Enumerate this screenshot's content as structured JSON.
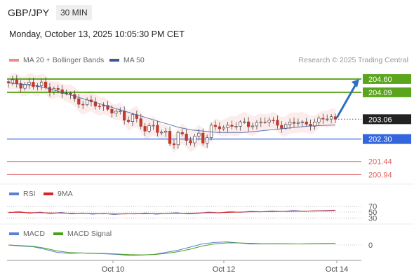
{
  "header": {
    "pair": "GBP/JPY",
    "timeframe": "30 MIN",
    "datetime": "Monday, October 13, 2025 10:05:30 PM CET",
    "copyright": "Research © 2025 Trading Central"
  },
  "colors": {
    "bollinger": "#f28a8a",
    "ma50": "#3b5998",
    "resistance": "#5aa51b",
    "support": "#3366dd",
    "support_red": "#e06060",
    "last_price": "#222222",
    "arrow": "#2e6fbf",
    "rsi": "#5b7fd6",
    "rsi_ma": "#d62728",
    "macd": "#5b7fd6",
    "macd_signal": "#4aa01a"
  },
  "chart_data": [
    {
      "type": "candlestick",
      "name": "price",
      "legend": [
        {
          "name": "MA 20 + Bollinger Bands",
          "color": "#f28a8a"
        },
        {
          "name": "MA 50",
          "color": "#3b5998"
        }
      ],
      "x_ticks": [
        "Oct 10",
        "Oct 12",
        "Oct 14"
      ],
      "y_range": [
        200.6,
        205.0
      ],
      "levels": [
        {
          "value": 204.6,
          "label": "204.60",
          "kind": "resistance"
        },
        {
          "value": 204.09,
          "label": "204.09",
          "kind": "resistance"
        },
        {
          "value": 203.06,
          "label": "203.06",
          "kind": "last"
        },
        {
          "value": 202.3,
          "label": "202.30",
          "kind": "support"
        },
        {
          "value": 201.44,
          "label": "201.44",
          "kind": "support_red"
        },
        {
          "value": 200.94,
          "label": "200.94",
          "kind": "support_red"
        }
      ],
      "close_path": [
        204.4,
        204.5,
        204.35,
        204.45,
        204.3,
        204.4,
        204.2,
        204.3,
        204.0,
        204.1,
        203.8,
        203.7,
        203.75,
        203.6,
        203.55,
        203.5,
        203.4,
        203.3,
        202.9,
        203.2,
        203.0,
        202.6,
        202.8,
        202.55,
        202.6,
        202.0,
        202.5,
        202.3,
        202.2,
        202.6,
        202.1,
        202.7,
        202.8,
        202.75,
        202.85,
        202.8,
        202.9,
        202.85,
        202.9,
        203.0,
        202.95,
        202.9,
        202.8,
        202.9,
        202.95,
        202.85,
        202.9,
        203.0,
        203.05,
        203.1,
        203.06
      ],
      "ma50_path": [
        204.45,
        204.4,
        204.35,
        204.25,
        204.1,
        203.95,
        203.8,
        203.65,
        203.5,
        203.35,
        203.2,
        203.05,
        202.9,
        202.75,
        202.65,
        202.6,
        202.55,
        202.55,
        202.55,
        202.6,
        202.65,
        202.7,
        202.75,
        202.8,
        202.82,
        202.84
      ],
      "arrow": {
        "from": 203.06,
        "to": 204.6
      }
    },
    {
      "type": "line",
      "name": "rsi",
      "legend": [
        {
          "name": "RSI",
          "color": "#5b7fd6"
        },
        {
          "name": "9MA",
          "color": "#d62728"
        }
      ],
      "y_ticks": [
        "70",
        "50",
        "30"
      ],
      "y_range": [
        20,
        80
      ],
      "series": [
        {
          "name": "RSI",
          "values": [
            48,
            52,
            46,
            50,
            45,
            49,
            44,
            47,
            43,
            46,
            42,
            45,
            44,
            47,
            43,
            46,
            48,
            44,
            46,
            50,
            47,
            52,
            49,
            53,
            51,
            54,
            52,
            55,
            53,
            54,
            55,
            56
          ]
        },
        {
          "name": "9MA",
          "values": [
            49,
            49,
            48,
            48,
            47,
            47,
            46,
            46,
            45,
            45,
            44,
            44,
            45,
            45,
            45,
            46,
            46,
            46,
            47,
            48,
            48,
            49,
            50,
            51,
            51,
            52,
            52,
            53,
            53,
            54,
            54,
            55
          ]
        }
      ]
    },
    {
      "type": "line",
      "name": "macd",
      "legend": [
        {
          "name": "MACD",
          "color": "#5b7fd6"
        },
        {
          "name": "MACD Signal",
          "color": "#4aa01a"
        }
      ],
      "y_ticks": [
        "0"
      ],
      "y_range": [
        -0.6,
        0.4
      ],
      "series": [
        {
          "name": "MACD",
          "values": [
            0.0,
            -0.05,
            -0.08,
            -0.2,
            -0.35,
            -0.4,
            -0.38,
            -0.4,
            -0.42,
            -0.45,
            -0.5,
            -0.48,
            -0.45,
            -0.35,
            -0.25,
            -0.1,
            0.05,
            0.12,
            0.15,
            0.1,
            0.05,
            0.05,
            0.06,
            0.05,
            0.05,
            0.06,
            0.07,
            0.08
          ]
        },
        {
          "name": "MACD Signal",
          "values": [
            0.0,
            -0.03,
            -0.06,
            -0.15,
            -0.28,
            -0.36,
            -0.38,
            -0.39,
            -0.41,
            -0.43,
            -0.46,
            -0.47,
            -0.46,
            -0.4,
            -0.32,
            -0.2,
            -0.05,
            0.05,
            0.1,
            0.1,
            0.08,
            0.06,
            0.06,
            0.06,
            0.05,
            0.06,
            0.06,
            0.07
          ]
        }
      ]
    }
  ]
}
